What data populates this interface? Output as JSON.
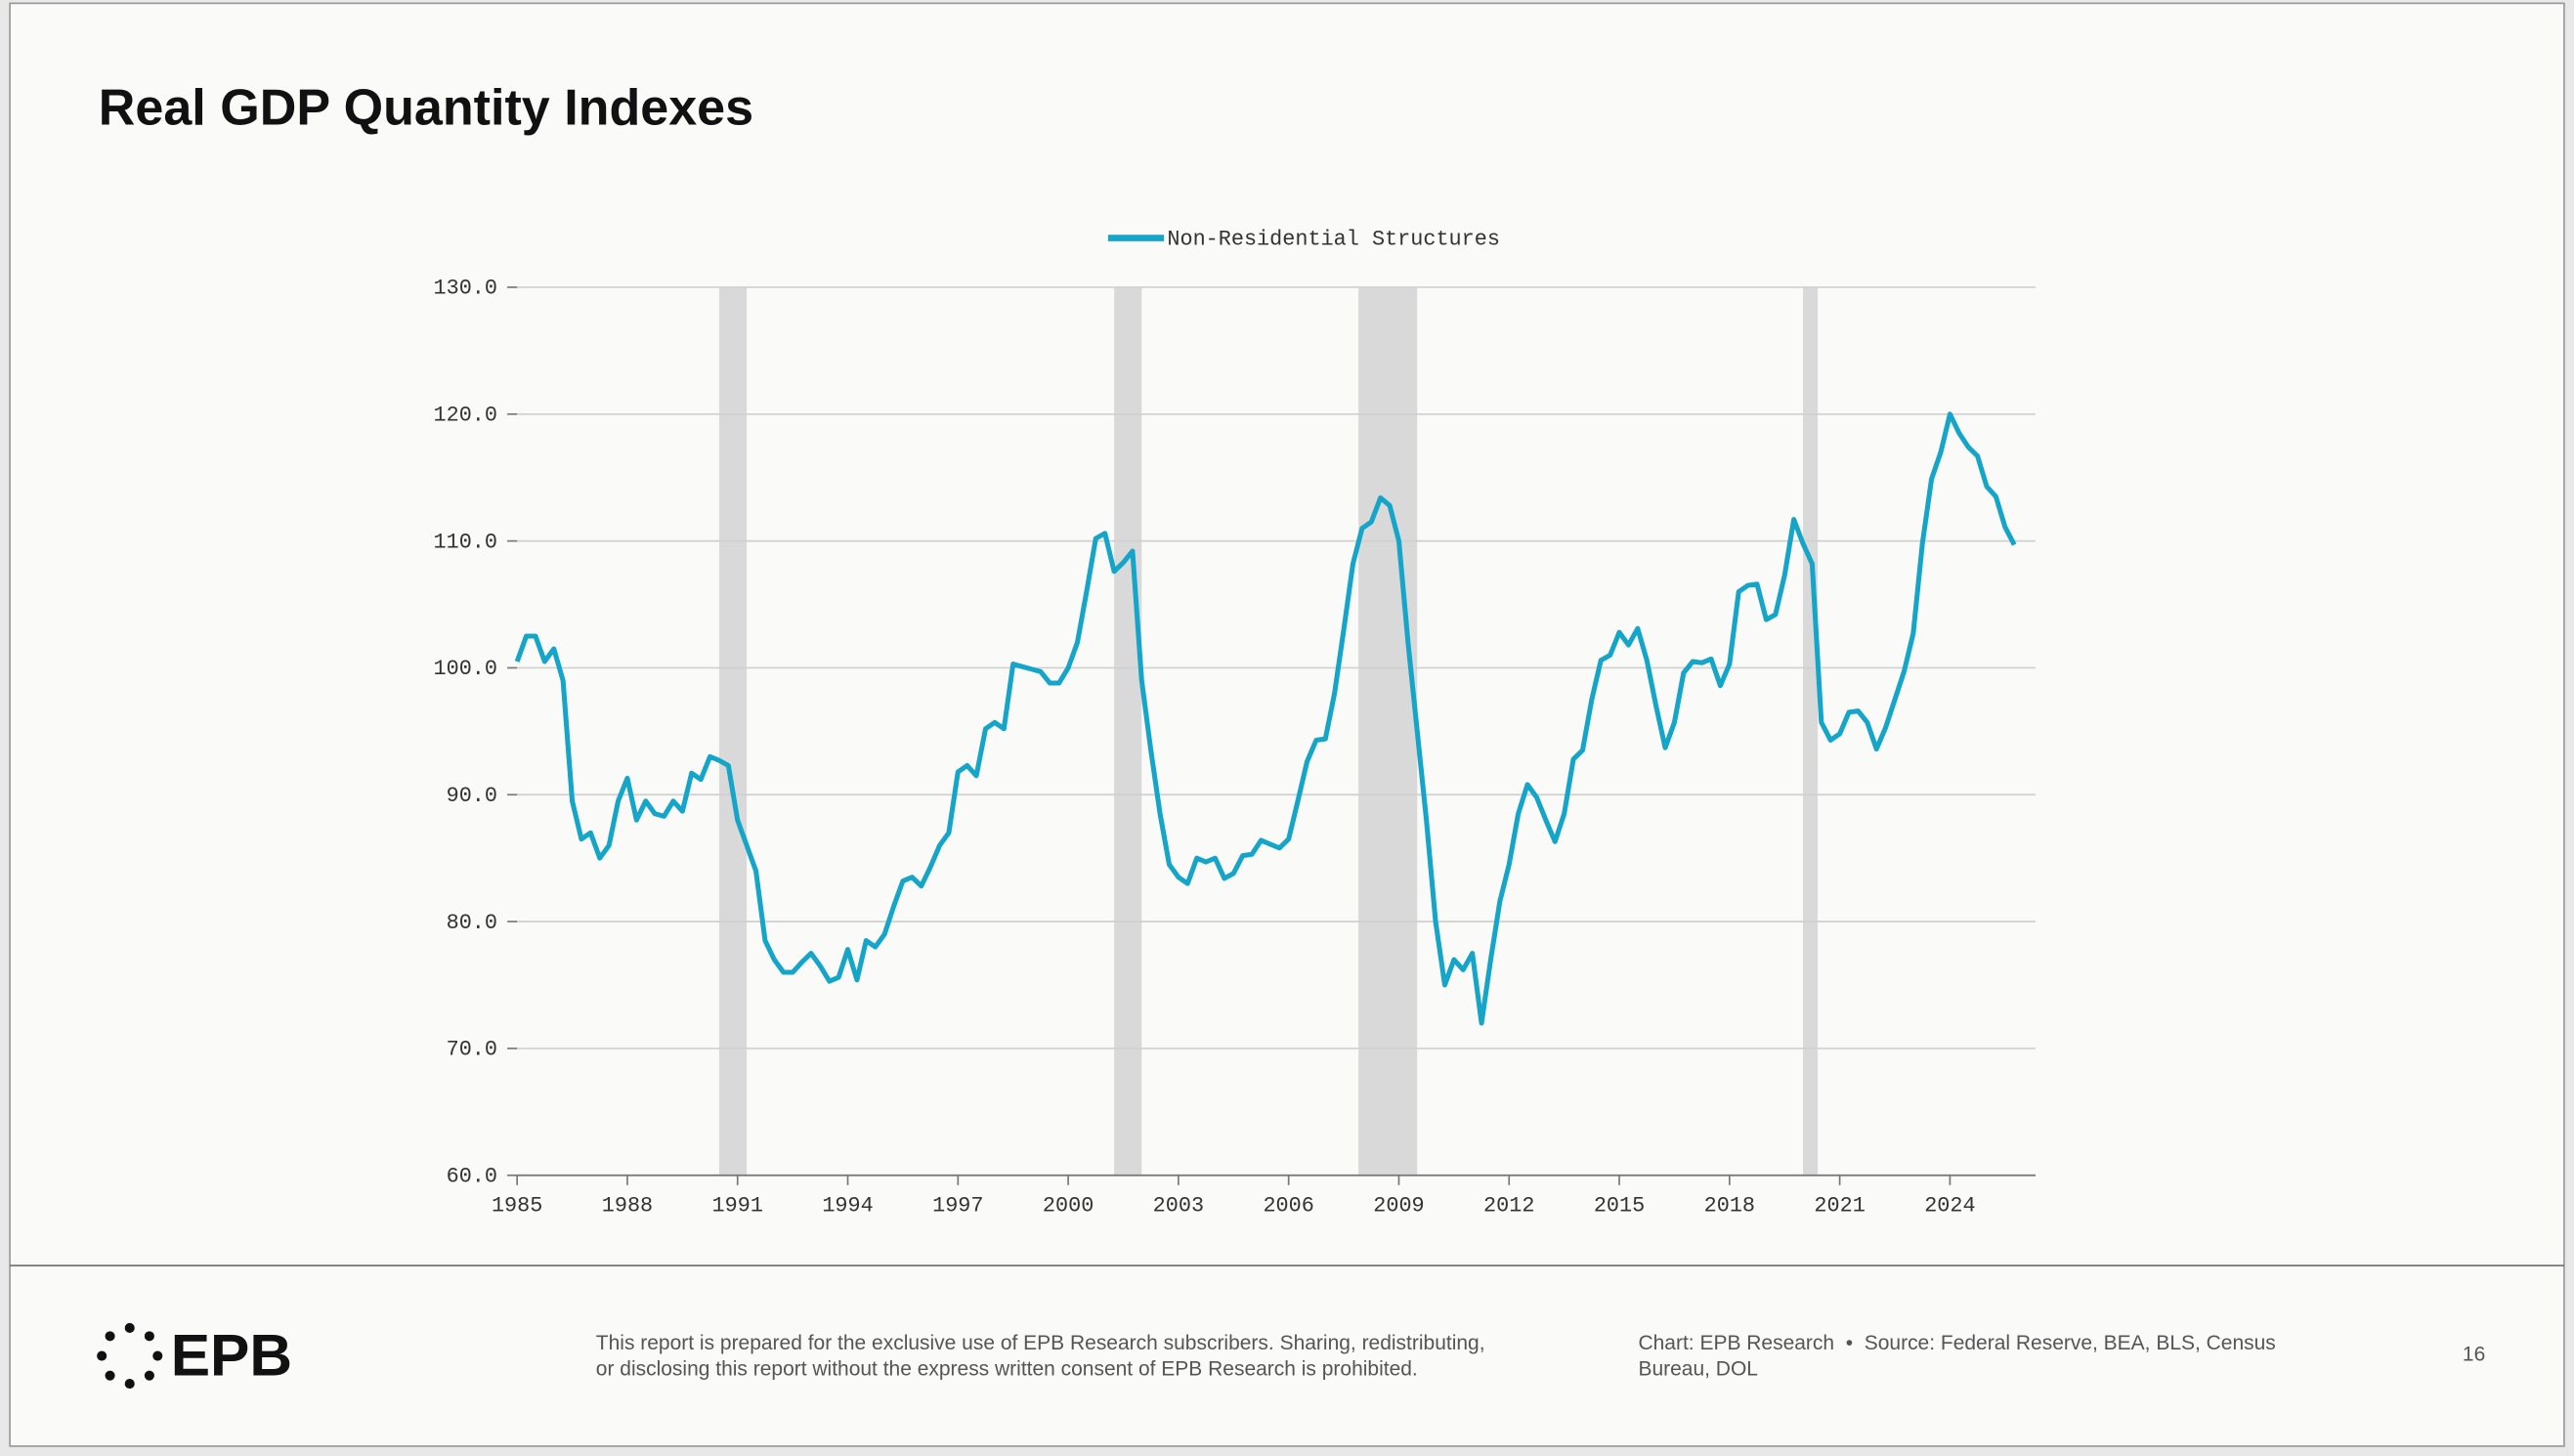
{
  "chart_data": {
    "type": "line",
    "title": "Real GDP Quantity Indexes",
    "x": [
      1985,
      1985.25,
      1985.5,
      1985.75,
      1986,
      1986.25,
      1986.5,
      1986.75,
      1987,
      1987.25,
      1987.5,
      1987.75,
      1988,
      1988.25,
      1988.5,
      1988.75,
      1989,
      1989.25,
      1989.5,
      1989.75,
      1990,
      1990.25,
      1990.5,
      1990.75,
      1991,
      1991.25,
      1991.5,
      1991.75,
      1992,
      1992.25,
      1992.5,
      1992.75,
      1993,
      1993.25,
      1993.5,
      1993.75,
      1994,
      1994.25,
      1994.5,
      1994.75,
      1995,
      1995.25,
      1995.5,
      1995.75,
      1996,
      1996.25,
      1996.5,
      1996.75,
      1997,
      1997.25,
      1997.5,
      1997.75,
      1998,
      1998.25,
      1998.5,
      1998.75,
      1999,
      1999.25,
      1999.5,
      1999.75,
      2000,
      2000.25,
      2000.5,
      2000.75,
      2001,
      2001.25,
      2001.5,
      2001.75,
      2002,
      2002.25,
      2002.5,
      2002.75,
      2003,
      2003.25,
      2003.5,
      2003.75,
      2004,
      2004.25,
      2004.5,
      2004.75,
      2005,
      2005.25,
      2005.5,
      2005.75,
      2006,
      2006.25,
      2006.5,
      2006.75,
      2007,
      2007.25,
      2007.5,
      2007.75,
      2008,
      2008.25,
      2008.5,
      2008.75,
      2009,
      2009.25,
      2009.5,
      2009.75,
      2010,
      2010.25,
      2010.5,
      2010.75,
      2011,
      2011.25,
      2011.5,
      2011.75,
      2012,
      2012.25,
      2012.5,
      2012.75,
      2013,
      2013.25,
      2013.5,
      2013.75,
      2014,
      2014.25,
      2014.5,
      2014.75,
      2015,
      2015.25,
      2015.5,
      2015.75,
      2016,
      2016.25,
      2016.5,
      2016.75,
      2017,
      2017.25,
      2017.5,
      2017.75,
      2018,
      2018.25,
      2018.5,
      2018.75,
      2019,
      2019.25,
      2019.5,
      2019.75,
      2020,
      2020.25,
      2020.5,
      2020.75,
      2021,
      2021.25,
      2021.5,
      2021.75,
      2022,
      2022.25,
      2022.5,
      2022.75,
      2023,
      2023.25,
      2023.5,
      2023.75,
      2024,
      2024.25,
      2024.5,
      2024.75,
      2025,
      2025.25,
      2025.5,
      2025.75
    ],
    "series": [
      {
        "name": "Non-Residential Structures",
        "color": "#14a5c8",
        "values": [
          100.5,
          102.5,
          102.5,
          100.5,
          101.5,
          99,
          89.5,
          86.5,
          87,
          85,
          86,
          89.5,
          91.3,
          88,
          89.5,
          88.5,
          88.3,
          89.5,
          88.7,
          91.7,
          91.2,
          93,
          92.7,
          92.3,
          88,
          86,
          84,
          78.5,
          77,
          76,
          76,
          76.8,
          77.5,
          76.5,
          75.3,
          75.6,
          77.8,
          75.4,
          78.5,
          78,
          79,
          81.2,
          83.2,
          83.5,
          82.8,
          84.3,
          86,
          87,
          91.8,
          92.3,
          91.5,
          95.2,
          95.7,
          95.2,
          100.3,
          100.1,
          99.9,
          99.7,
          98.8,
          98.8,
          100,
          102,
          106,
          110.2,
          110.6,
          107.6,
          108.3,
          109.2,
          99,
          93.5,
          88.5,
          84.5,
          83.5,
          83,
          85,
          84.7,
          85,
          83.4,
          83.8,
          85.2,
          85.3,
          86.4,
          86.1,
          85.8,
          86.5,
          89.5,
          92.6,
          94.3,
          94.4,
          98,
          103,
          108.2,
          111,
          111.5,
          113.4,
          112.8,
          110,
          102,
          95,
          88,
          80,
          75,
          77,
          76.2,
          77.5,
          72,
          77,
          81.6,
          84.5,
          88.5,
          90.8,
          89.8,
          88,
          86.3,
          88.5,
          92.8,
          93.5,
          97.5,
          100.6,
          101,
          102.8,
          101.8,
          103.1,
          100.6,
          97,
          93.7,
          95.7,
          99.6,
          100.5,
          100.4,
          100.7,
          98.6,
          100.3,
          106,
          106.5,
          106.6,
          103.8,
          104.2,
          107.3,
          111.7,
          109.8,
          108.2,
          95.7,
          94.3,
          94.8,
          96.5,
          96.6,
          95.7,
          93.6,
          95.3,
          97.5,
          99.7,
          102.7,
          109.8,
          114.9,
          117,
          120,
          118.5,
          117.4,
          116.7,
          114.3,
          113.5,
          111.1,
          109.7
        ]
      }
    ],
    "recessions": [
      [
        1990.5,
        1991.25
      ],
      [
        2001.25,
        2002
      ],
      [
        2007.9,
        2009.5
      ],
      [
        2020,
        2020.4
      ]
    ],
    "recession_color": "#d9d9d9",
    "xlim": [
      1985,
      2026.33
    ],
    "xticks": [
      1985,
      1988,
      1991,
      1994,
      1997,
      2000,
      2003,
      2006,
      2009,
      2012,
      2015,
      2018,
      2021,
      2024
    ],
    "ylim": [
      60,
      130
    ],
    "yticks": [
      {
        "value": 60,
        "label": "60.0"
      },
      {
        "value": 70,
        "label": "70.0"
      },
      {
        "value": 80,
        "label": "80.0"
      },
      {
        "value": 90,
        "label": "90.0"
      },
      {
        "value": 100,
        "label": "100.0"
      },
      {
        "value": 110,
        "label": "110.0"
      },
      {
        "value": 120,
        "label": "120.0"
      },
      {
        "value": 130,
        "label": "130.0"
      }
    ],
    "grid": true,
    "legend": "top"
  },
  "footer": {
    "logo": "EPB",
    "disclaimer": [
      "This report is prepared for the exclusive use of EPB Research subscribers. Sharing, redistributing,",
      "or disclosing this report without the express written consent of EPB Research is prohibited."
    ],
    "source": [
      "Chart: EPB Research  •  Source: Federal Reserve, BEA, BLS, Census",
      "Bureau, DOL"
    ],
    "page": "16"
  }
}
